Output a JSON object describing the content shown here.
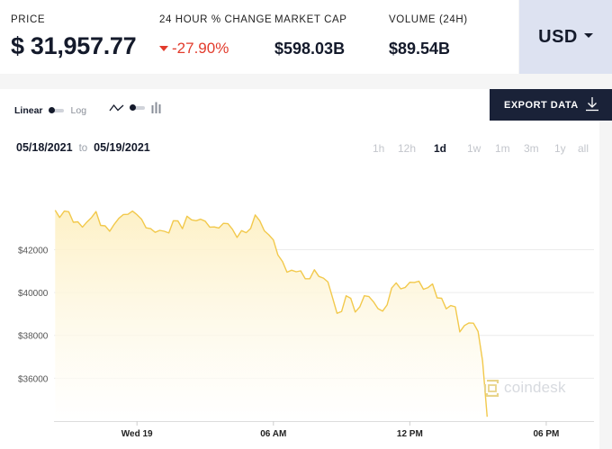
{
  "stats": {
    "price": {
      "label": "PRICE",
      "value": "$ 31,957.77"
    },
    "change": {
      "label": "24 HOUR % CHANGE",
      "value": "-27.90%"
    },
    "market_cap": {
      "label": "MARKET CAP",
      "value": "$598.03B"
    },
    "volume": {
      "label": "VOLUME (24H)",
      "value": "$89.54B"
    }
  },
  "currency": {
    "selected": "USD"
  },
  "toolbar": {
    "scale_linear": "Linear",
    "scale_log": "Log",
    "export_label": "EXPORT DATA"
  },
  "date_range": {
    "from": "05/18/2021",
    "sep": "to",
    "to": "05/19/2021"
  },
  "ranges": [
    {
      "label": "1h",
      "active": false
    },
    {
      "label": "12h",
      "active": false
    },
    {
      "label": "1d",
      "active": true
    },
    {
      "label": "1w",
      "active": false
    },
    {
      "label": "1m",
      "active": false
    },
    {
      "label": "3m",
      "active": false
    },
    {
      "label": "1y",
      "active": false
    },
    {
      "label": "all",
      "active": false
    }
  ],
  "watermark": "coindesk",
  "colors": {
    "line": "#f2c94c",
    "accent_down": "#e23b2c",
    "export_bg": "#1a2238",
    "currency_bg": "#dde2f1"
  },
  "chart_data": {
    "type": "area",
    "y_ticks": [
      {
        "label": "$42000",
        "value": 42000
      },
      {
        "label": "$40000",
        "value": 40000
      },
      {
        "label": "$38000",
        "value": 38000
      },
      {
        "label": "$36000",
        "value": 36000
      }
    ],
    "x_ticks": [
      {
        "label": "Wed 19",
        "hour": 0
      },
      {
        "label": "06 AM",
        "hour": 6
      },
      {
        "label": "12 PM",
        "hour": 12
      },
      {
        "label": "06 PM",
        "hour": 18
      }
    ],
    "x_range_hours": [
      -3.65,
      20.1
    ],
    "ylim": [
      34000,
      45000
    ],
    "series": [
      {
        "values": [
          [
            -3.6,
            43840
          ],
          [
            -3.4,
            43500
          ],
          [
            -3.2,
            43800
          ],
          [
            -3.0,
            43770
          ],
          [
            -2.8,
            43280
          ],
          [
            -2.6,
            43300
          ],
          [
            -2.4,
            43050
          ],
          [
            -2.2,
            43290
          ],
          [
            -2.0,
            43500
          ],
          [
            -1.8,
            43780
          ],
          [
            -1.6,
            43130
          ],
          [
            -1.4,
            43110
          ],
          [
            -1.2,
            42860
          ],
          [
            -1.0,
            43180
          ],
          [
            -0.8,
            43460
          ],
          [
            -0.6,
            43640
          ],
          [
            -0.4,
            43650
          ],
          [
            -0.2,
            43800
          ],
          [
            0.0,
            43630
          ],
          [
            0.2,
            43420
          ],
          [
            0.4,
            43020
          ],
          [
            0.6,
            42980
          ],
          [
            0.8,
            42810
          ],
          [
            1.0,
            42900
          ],
          [
            1.2,
            42860
          ],
          [
            1.4,
            42780
          ],
          [
            1.6,
            43350
          ],
          [
            1.8,
            43340
          ],
          [
            2.0,
            42980
          ],
          [
            2.2,
            43560
          ],
          [
            2.4,
            43390
          ],
          [
            2.6,
            43350
          ],
          [
            2.8,
            43420
          ],
          [
            3.0,
            43330
          ],
          [
            3.2,
            43050
          ],
          [
            3.4,
            43060
          ],
          [
            3.6,
            43010
          ],
          [
            3.8,
            43230
          ],
          [
            4.0,
            43210
          ],
          [
            4.2,
            42950
          ],
          [
            4.4,
            42570
          ],
          [
            4.6,
            42890
          ],
          [
            4.8,
            42790
          ],
          [
            5.0,
            42990
          ],
          [
            5.2,
            43620
          ],
          [
            5.4,
            43350
          ],
          [
            5.6,
            42880
          ],
          [
            5.8,
            42690
          ],
          [
            6.0,
            42450
          ],
          [
            6.2,
            41750
          ],
          [
            6.4,
            41450
          ],
          [
            6.6,
            40950
          ],
          [
            6.8,
            41040
          ],
          [
            7.0,
            40970
          ],
          [
            7.2,
            41010
          ],
          [
            7.4,
            40640
          ],
          [
            7.6,
            40640
          ],
          [
            7.8,
            41060
          ],
          [
            8.0,
            40750
          ],
          [
            8.2,
            40670
          ],
          [
            8.4,
            40490
          ],
          [
            8.6,
            39760
          ],
          [
            8.8,
            39030
          ],
          [
            9.0,
            39120
          ],
          [
            9.2,
            39850
          ],
          [
            9.4,
            39730
          ],
          [
            9.6,
            39090
          ],
          [
            9.8,
            39330
          ],
          [
            10.0,
            39850
          ],
          [
            10.2,
            39810
          ],
          [
            10.4,
            39570
          ],
          [
            10.6,
            39250
          ],
          [
            10.8,
            39130
          ],
          [
            11.0,
            39420
          ],
          [
            11.2,
            40210
          ],
          [
            11.4,
            40450
          ],
          [
            11.6,
            40170
          ],
          [
            11.8,
            40240
          ],
          [
            12.0,
            40480
          ],
          [
            12.2,
            40470
          ],
          [
            12.4,
            40530
          ],
          [
            12.6,
            40150
          ],
          [
            12.8,
            40230
          ],
          [
            13.0,
            40400
          ],
          [
            13.2,
            39750
          ],
          [
            13.4,
            39730
          ],
          [
            13.6,
            39240
          ],
          [
            13.8,
            39390
          ],
          [
            14.0,
            39330
          ],
          [
            14.2,
            38160
          ],
          [
            14.4,
            38460
          ],
          [
            14.6,
            38580
          ],
          [
            14.8,
            38570
          ],
          [
            15.0,
            38180
          ],
          [
            15.2,
            36810
          ],
          [
            15.4,
            34200
          ]
        ]
      }
    ]
  }
}
